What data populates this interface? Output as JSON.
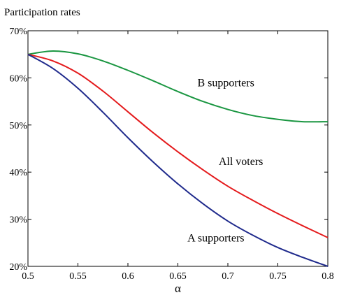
{
  "chart_data": {
    "type": "line",
    "title": "Participation rates",
    "xlabel": "α",
    "ylabel": "",
    "xlim": [
      0.5,
      0.8
    ],
    "ylim": [
      20,
      70
    ],
    "grid": false,
    "x_ticks": [
      0.5,
      0.55,
      0.6,
      0.65,
      0.7,
      0.75,
      0.8
    ],
    "x_tick_labels": [
      "0.5",
      "0.55",
      "0.6",
      "0.65",
      "0.7",
      "0.75",
      "0.8"
    ],
    "y_ticks": [
      20,
      30,
      40,
      50,
      60,
      70
    ],
    "y_tick_labels": [
      "20%",
      "30%",
      "40%",
      "50%",
      "60%",
      "70%"
    ],
    "x": [
      0.5,
      0.525,
      0.55,
      0.575,
      0.6,
      0.625,
      0.65,
      0.675,
      0.7,
      0.725,
      0.75,
      0.775,
      0.8
    ],
    "series": [
      {
        "color": "#1a9641",
        "values": [
          65.0,
          65.7,
          65.1,
          63.6,
          61.6,
          59.4,
          57.1,
          55.0,
          53.3,
          52.0,
          51.2,
          50.7,
          50.7
        ]
      },
      {
        "color": "#e41a1c",
        "values": [
          65.0,
          63.6,
          61.0,
          57.2,
          52.8,
          48.4,
          44.3,
          40.5,
          37.0,
          34.0,
          31.2,
          28.6,
          26.1
        ]
      },
      {
        "color": "#1f2a8c",
        "values": [
          65.0,
          62.0,
          57.8,
          52.7,
          47.3,
          42.2,
          37.5,
          33.3,
          29.6,
          26.6,
          24.0,
          21.9,
          20.0
        ]
      }
    ],
    "annotations": [
      {
        "text": "B supporters",
        "x": 0.698,
        "y": 58.2,
        "anchor": "middle"
      },
      {
        "text": "All voters",
        "x": 0.713,
        "y": 41.5,
        "anchor": "middle"
      },
      {
        "text": "A supporters",
        "x": 0.688,
        "y": 25.3,
        "anchor": "middle"
      }
    ]
  }
}
